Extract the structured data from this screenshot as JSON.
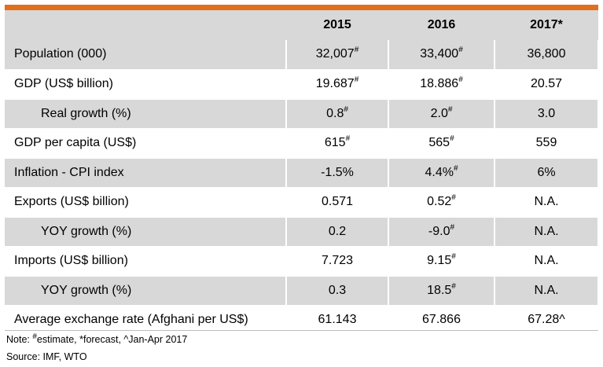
{
  "header": {
    "label": "",
    "years": [
      "2015",
      "2016",
      "2017*"
    ]
  },
  "rows": [
    {
      "label": "Population (000)",
      "indent": false,
      "shaded": true,
      "cells": [
        {
          "v": "32,007",
          "sup": "#"
        },
        {
          "v": "33,400",
          "sup": "#"
        },
        {
          "v": "36,800",
          "sup": ""
        }
      ]
    },
    {
      "label": "GDP (US$ billion)",
      "indent": false,
      "shaded": false,
      "cells": [
        {
          "v": "19.687",
          "sup": "#"
        },
        {
          "v": "18.886",
          "sup": "#"
        },
        {
          "v": "20.57",
          "sup": ""
        }
      ]
    },
    {
      "label": "Real growth (%)",
      "indent": true,
      "shaded": true,
      "cells": [
        {
          "v": "0.8",
          "sup": "#"
        },
        {
          "v": "2.0",
          "sup": "#"
        },
        {
          "v": "3.0",
          "sup": ""
        }
      ]
    },
    {
      "label": "GDP per capita (US$)",
      "indent": false,
      "shaded": false,
      "cells": [
        {
          "v": "615",
          "sup": "#"
        },
        {
          "v": "565",
          "sup": "#"
        },
        {
          "v": "559",
          "sup": ""
        }
      ]
    },
    {
      "label": "Inflation - CPI index",
      "indent": false,
      "shaded": true,
      "cells": [
        {
          "v": "-1.5%",
          "sup": ""
        },
        {
          "v": "4.4%",
          "sup": "#"
        },
        {
          "v": "6%",
          "sup": ""
        }
      ]
    },
    {
      "label": "Exports (US$ billion)",
      "indent": false,
      "shaded": false,
      "cells": [
        {
          "v": "0.571",
          "sup": ""
        },
        {
          "v": "0.52",
          "sup": "#"
        },
        {
          "v": "N.A.",
          "sup": ""
        }
      ]
    },
    {
      "label": "YOY growth (%)",
      "indent": true,
      "shaded": true,
      "cells": [
        {
          "v": "0.2",
          "sup": ""
        },
        {
          "v": "-9.0",
          "sup": "#"
        },
        {
          "v": "N.A.",
          "sup": ""
        }
      ]
    },
    {
      "label": "Imports (US$ billion)",
      "indent": false,
      "shaded": false,
      "cells": [
        {
          "v": "7.723",
          "sup": ""
        },
        {
          "v": "9.15",
          "sup": "#"
        },
        {
          "v": "N.A.",
          "sup": ""
        }
      ]
    },
    {
      "label": "YOY growth (%)",
      "indent": true,
      "shaded": true,
      "cells": [
        {
          "v": "0.3",
          "sup": ""
        },
        {
          "v": "18.5",
          "sup": "#"
        },
        {
          "v": "N.A.",
          "sup": ""
        }
      ]
    },
    {
      "label": "Average exchange rate (Afghani per US$)",
      "indent": false,
      "shaded": false,
      "cells": [
        {
          "v": "61.143",
          "sup": ""
        },
        {
          "v": "67.866",
          "sup": ""
        },
        {
          "v": "67.28^",
          "sup": ""
        }
      ]
    }
  ],
  "footer": {
    "note_prefix": "Note: ",
    "note_estimate_sup": "#",
    "note_rest": "estimate, *forecast, ^Jan-Apr 2017",
    "source": "Source: IMF, WTO"
  },
  "colors": {
    "accent_bar": "#e0701c",
    "shaded_row": "#d8d8d8"
  }
}
